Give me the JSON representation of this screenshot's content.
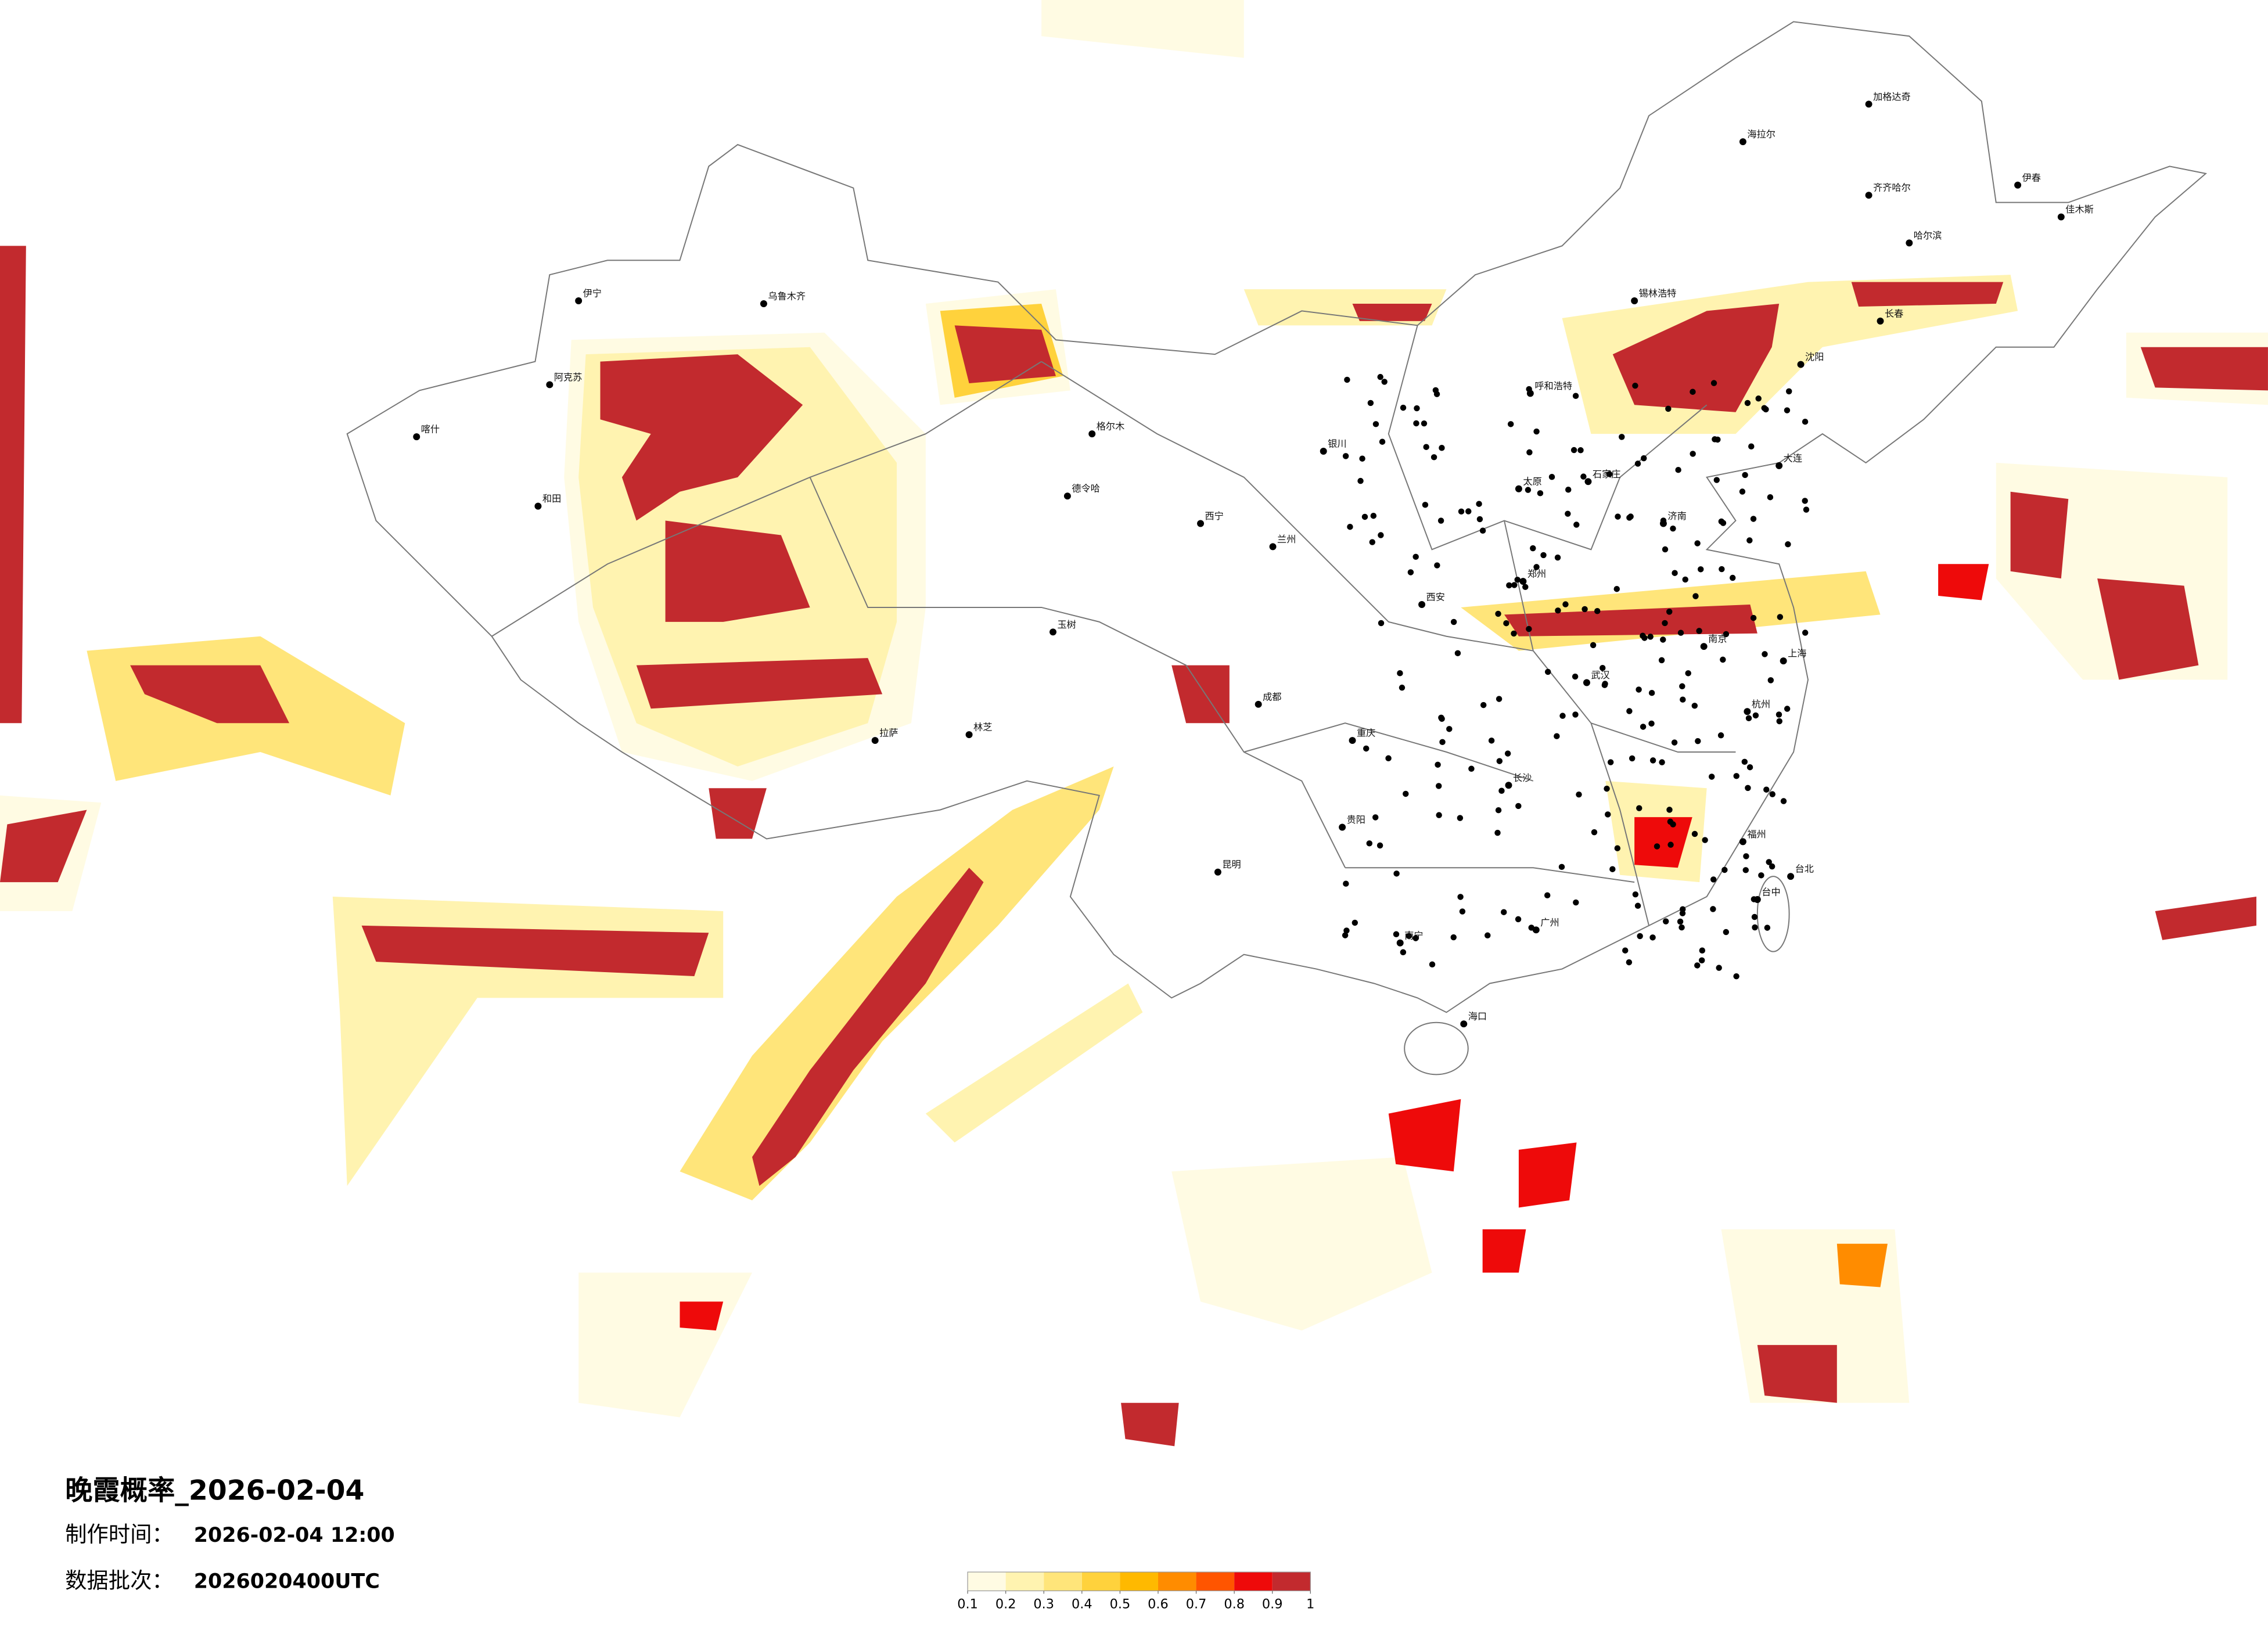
{
  "title": "晚霞概率_2026-02-04",
  "info": [
    {
      "label": "制作时间：",
      "value": "2026-02-04 12:00"
    },
    {
      "label": "数据批次：",
      "value": "2026020400UTC"
    }
  ],
  "legend": {
    "ticks": [
      0.1,
      0.2,
      0.3,
      0.4,
      0.5,
      0.6,
      0.7,
      0.8,
      0.9,
      1
    ],
    "colors": [
      "#fffbe3",
      "#fff3b0",
      "#ffe57a",
      "#ffd23c",
      "#ffb900",
      "#ff8c00",
      "#ff5500",
      "#ee0a0a",
      "#c22a2e"
    ]
  },
  "cities": [
    "加格达奇",
    "海拉尔",
    "齐齐哈尔",
    "伊春",
    "佳木斯",
    "哈尔滨",
    "锡林浩特",
    "呼和浩特",
    "银川",
    "西宁",
    "兰州",
    "格尔木",
    "德令哈",
    "玉树",
    "拉萨",
    "林芝",
    "喀什",
    "和田",
    "伊宁",
    "阿克苏",
    "乌鲁木齐",
    "成都",
    "重庆",
    "贵阳",
    "昆明",
    "南宁",
    "广州",
    "海口",
    "长沙",
    "武汉",
    "郑州",
    "西安",
    "太原",
    "石家庄",
    "济南",
    "南京",
    "上海",
    "杭州",
    "福州",
    "台北",
    "台中",
    "沈阳",
    "大连",
    "长春"
  ]
}
